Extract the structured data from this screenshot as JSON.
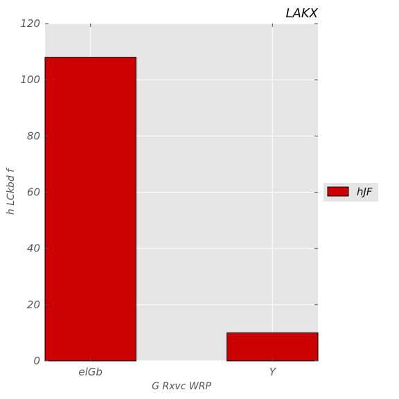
{
  "chart_data": {
    "type": "bar",
    "title": "LAKX",
    "xlabel": "G Rxvc WRP",
    "ylabel": "h  LCkbd f",
    "categories": [
      "elGb",
      "Y"
    ],
    "series": [
      {
        "name": "hJF",
        "values": [
          108,
          10
        ],
        "color": "#cc0000"
      }
    ],
    "ylim": [
      0,
      120
    ],
    "yticks": [
      0,
      20,
      40,
      60,
      80,
      100,
      120
    ],
    "grid": true,
    "legend_position": "right-center",
    "colors": {
      "plot_background": "#e5e5e5",
      "grid": "#ffffff",
      "bar_edge": "#000000"
    }
  }
}
